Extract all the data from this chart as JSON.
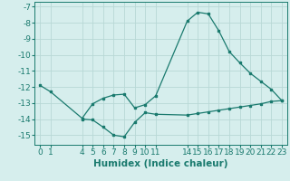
{
  "line1_x": [
    0,
    1,
    4,
    5,
    6,
    7,
    8,
    9,
    10,
    11,
    14,
    15,
    16,
    17,
    18,
    19,
    20,
    21,
    22,
    23
  ],
  "line1_y": [
    -11.9,
    -12.3,
    -13.95,
    -13.05,
    -12.7,
    -12.5,
    -12.45,
    -13.3,
    -13.1,
    -12.55,
    -7.9,
    -7.35,
    -7.45,
    -8.5,
    -9.8,
    -10.5,
    -11.15,
    -11.65,
    -12.15,
    -12.85
  ],
  "line2_x": [
    4,
    5,
    6,
    7,
    8,
    9,
    10,
    11,
    14,
    15,
    16,
    17,
    18,
    19,
    20,
    21,
    22,
    23
  ],
  "line2_y": [
    -14.0,
    -14.05,
    -14.5,
    -15.0,
    -15.1,
    -14.2,
    -13.6,
    -13.7,
    -13.75,
    -13.65,
    -13.55,
    -13.45,
    -13.35,
    -13.25,
    -13.15,
    -13.05,
    -12.9,
    -12.85
  ],
  "line_color": "#1a7a6e",
  "bg_color": "#d6eeed",
  "grid_color": "#b8d8d6",
  "xlabel": "Humidex (Indice chaleur)",
  "ylim": [
    -15.6,
    -6.7
  ],
  "xlim": [
    -0.5,
    23.5
  ],
  "xticks": [
    0,
    1,
    4,
    5,
    6,
    7,
    8,
    9,
    10,
    11,
    14,
    15,
    16,
    17,
    18,
    19,
    20,
    21,
    22,
    23
  ],
  "yticks": [
    -7,
    -8,
    -9,
    -10,
    -11,
    -12,
    -13,
    -14,
    -15
  ],
  "xlabel_fontsize": 7.5,
  "tick_fontsize": 6.5
}
